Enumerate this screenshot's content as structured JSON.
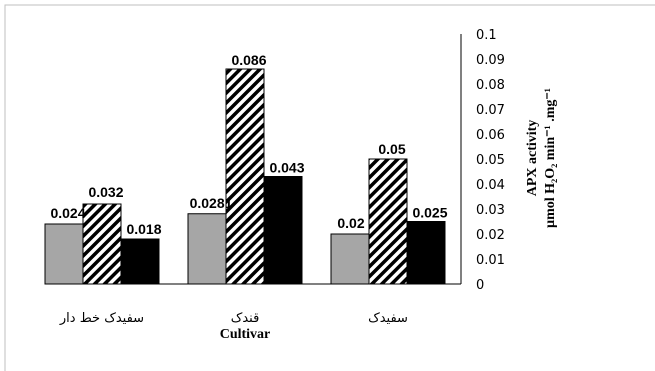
{
  "chart_data": {
    "type": "bar",
    "categories": [
      "سفیدک خط دار",
      "قندک",
      "سفیدک"
    ],
    "series": [
      {
        "values": [
          0.024,
          0.0281,
          0.02
        ],
        "color": "#a6a6a6",
        "pattern": "solid-gray"
      },
      {
        "values": [
          0.032,
          0.086,
          0.05
        ],
        "color": "#000000",
        "pattern": "diagonal-stripes"
      },
      {
        "values": [
          0.018,
          0.043,
          0.025
        ],
        "color": "#000000",
        "pattern": "solid-black"
      }
    ],
    "data_labels": [
      [
        "0.024",
        "0.032",
        "0.018"
      ],
      [
        "0.0281",
        "0.086",
        "0.043"
      ],
      [
        "0.02",
        "0.05",
        "0.025"
      ]
    ],
    "xlabel": "Cultivar",
    "ylabel_line1": "APX activity",
    "ylabel_line2": "µmol H₂O₂ min⁻¹ .mg⁻¹",
    "ylim": [
      0,
      0.1
    ],
    "yticks": [
      "0",
      "0.01",
      "0.02",
      "0.03",
      "0.04",
      "0.05",
      "0.06",
      "0.07",
      "0.08",
      "0.09",
      "0.1"
    ],
    "y_axis_side": "right",
    "grid": false,
    "legend": "none"
  }
}
